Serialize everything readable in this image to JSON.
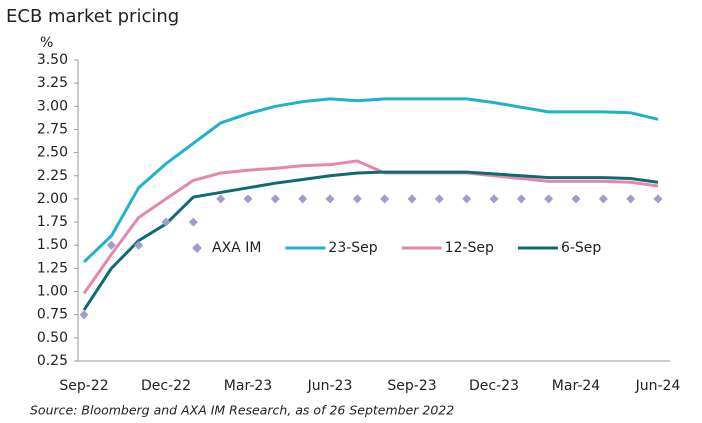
{
  "chart_data": {
    "type": "line",
    "title": "ECB market pricing",
    "y_label": "%",
    "source": "Source: Bloomberg and AXA IM Research, as of 26 September 2022",
    "categories": [
      "Sep-22",
      null,
      null,
      "Dec-22",
      null,
      null,
      "Mar-23",
      null,
      null,
      "Jun-23",
      null,
      null,
      "Sep-23",
      null,
      null,
      "Dec-23",
      null,
      null,
      "Mar-24",
      null,
      null,
      "Jun-24"
    ],
    "series": [
      {
        "name": "AXA IM",
        "color": "#a09ccc",
        "marker": "diamond",
        "values": [
          0.75,
          1.5,
          1.5,
          1.75,
          1.75,
          2.0,
          2.0,
          2.0,
          2.0,
          2.0,
          2.0,
          2.0,
          2.0,
          2.0,
          2.0,
          2.0,
          2.0,
          2.0,
          2.0,
          2.0,
          2.0,
          2.0
        ]
      },
      {
        "name": "23-Sep",
        "color": "#1db3c8",
        "values": [
          1.32,
          1.6,
          2.12,
          2.38,
          2.6,
          2.82,
          2.92,
          3.0,
          3.05,
          3.08,
          3.06,
          3.08,
          3.08,
          3.08,
          3.08,
          3.04,
          2.99,
          2.94,
          2.94,
          2.94,
          2.93,
          2.86
        ]
      },
      {
        "name": "12-Sep",
        "color": "#e787a8",
        "values": [
          0.98,
          1.4,
          1.8,
          2.0,
          2.2,
          2.28,
          2.31,
          2.33,
          2.36,
          2.37,
          2.41,
          2.28,
          2.28,
          2.28,
          2.28,
          2.25,
          2.22,
          2.19,
          2.19,
          2.19,
          2.18,
          2.14
        ]
      },
      {
        "name": "6-Sep",
        "color": "#0f6b72",
        "values": [
          0.8,
          1.25,
          1.55,
          1.73,
          2.02,
          2.07,
          2.12,
          2.17,
          2.21,
          2.25,
          2.28,
          2.29,
          2.29,
          2.29,
          2.29,
          2.27,
          2.25,
          2.23,
          2.23,
          2.23,
          2.22,
          2.18
        ]
      }
    ],
    "ylim": [
      0.25,
      3.5
    ],
    "yticks": [
      {
        "value": 0.25,
        "label": "0.25"
      },
      {
        "value": 0.5,
        "label": "0.50"
      },
      {
        "value": 0.75,
        "label": "0.75"
      },
      {
        "value": 1.0,
        "label": "1.00"
      },
      {
        "value": 1.25,
        "label": "1.25"
      },
      {
        "value": 1.5,
        "label": "1.50"
      },
      {
        "value": 1.75,
        "label": "1.75"
      },
      {
        "value": 2.0,
        "label": "2.00"
      },
      {
        "value": 2.25,
        "label": "2.25"
      },
      {
        "value": 2.5,
        "label": "2.50"
      },
      {
        "value": 2.75,
        "label": "2.75"
      },
      {
        "value": 3.0,
        "label": "3.00"
      },
      {
        "value": 3.25,
        "label": "3.25"
      },
      {
        "value": 3.5,
        "label": "3.50"
      }
    ],
    "grid": false,
    "legend": "center"
  }
}
